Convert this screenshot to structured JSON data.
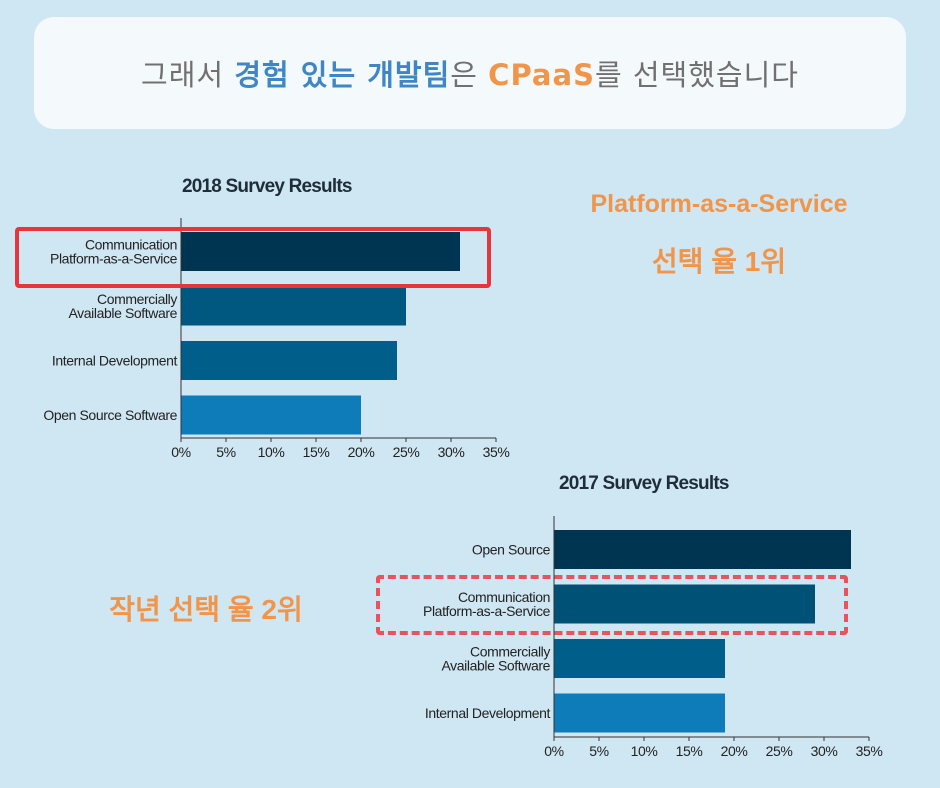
{
  "headline": {
    "p1": "그래서 ",
    "p2": "경험 있는 개발팀",
    "p3": "은 ",
    "p4": "CPaaS",
    "p5": "를 선택했습니다"
  },
  "callouts": {
    "first_line1": "Platform-as-a-Service",
    "first_line2": "선택 율 1위",
    "second": "작년 선택 율 2위"
  },
  "colors": {
    "orange": "#f0954a",
    "blue": "#3f86c6",
    "highlight": "#e8343c"
  },
  "chart_data": [
    {
      "type": "bar",
      "orientation": "horizontal",
      "title": "2018 Survey Results",
      "categories": [
        [
          "Communication",
          "Platform-as-a-Service"
        ],
        [
          "Commercially",
          "Available Software"
        ],
        [
          "Internal Development"
        ],
        [
          "Open Source Software"
        ]
      ],
      "values": [
        31,
        25,
        24,
        20
      ],
      "bar_colors": [
        "#003552",
        "#005880",
        "#005e8b",
        "#0e7cb8"
      ],
      "xlim": [
        0,
        35
      ],
      "ticks": [
        "0%",
        "5%",
        "10%",
        "15%",
        "20%",
        "25%",
        "30%",
        "35%"
      ],
      "highlighted_category": 0,
      "grid": false
    },
    {
      "type": "bar",
      "orientation": "horizontal",
      "title": "2017 Survey Results",
      "categories": [
        [
          "Open Source"
        ],
        [
          "Communication",
          "Platform-as-a-Service"
        ],
        [
          "Commercially",
          "Available Software"
        ],
        [
          "Internal Development"
        ]
      ],
      "values": [
        33,
        29,
        19,
        19
      ],
      "bar_colors": [
        "#003552",
        "#005176",
        "#005e8b",
        "#0e7cb8"
      ],
      "xlim": [
        0,
        35
      ],
      "ticks": [
        "0%",
        "5%",
        "10%",
        "15%",
        "20%",
        "25%",
        "30%",
        "35%"
      ],
      "highlighted_category": 1,
      "grid": false
    }
  ]
}
